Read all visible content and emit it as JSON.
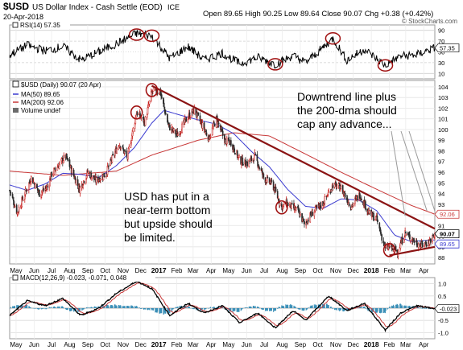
{
  "header": {
    "ticker": "$USD",
    "name": "US Dollar Index - Cash Settle (EOD)",
    "exchange": "ICE",
    "date": "20-Apr-2018",
    "ohlc": "Open 89.65  High 90.25  Low 89.64  Close 90.07  Chg +0.38 (+0.42%)",
    "brand": "© StockCharts.com"
  },
  "rsi_panel": {
    "label": "RSI(14) 57.35",
    "value_tag": "57.35",
    "ticks": [
      90,
      70,
      50,
      30,
      10
    ],
    "ylim": [
      0,
      100
    ]
  },
  "price_panel": {
    "legend_title": "$USD (Daily) 90.07 (20 Apr)",
    "legend_items": [
      {
        "label": "MA(50) 89.65",
        "color": "#3b3bd0"
      },
      {
        "label": "MA(200) 92.06",
        "color": "#c83737"
      },
      {
        "label": "Volume undef",
        "color": "#6b6b6b"
      }
    ],
    "value_tags": [
      {
        "text": "92.06",
        "value": 92.06,
        "color": "#c83737"
      },
      {
        "text": "90.07",
        "value": 90.07,
        "color": "#000000"
      },
      {
        "text": "89.65",
        "value": 89.65,
        "color": "#3b3bd0"
      }
    ],
    "ticks": [
      88,
      89,
      90,
      91,
      92,
      93,
      94,
      95,
      96,
      97,
      98,
      99,
      100,
      101,
      102,
      103,
      104
    ],
    "ylim": [
      87.4,
      104.6
    ]
  },
  "macd_panel": {
    "label": "MACD(12,26,9) -0.023, -0.071, 0.048",
    "label_colors": [
      "#000000",
      "#c83737",
      "#2f7fa8"
    ],
    "value_tag": "-0.023",
    "ticks": [
      1.0,
      0.5,
      0.0,
      -0.5,
      -1.0
    ],
    "ylim": [
      -1.25,
      1.25
    ]
  },
  "annotations": {
    "left_note": "USD has put in a\nnear-term bottom\nbut upside should\nbe limited.",
    "right_note": "Downtrend line plus\nthe 200-dma should\ncap any advance..."
  },
  "x_axis": {
    "labels": [
      "May",
      "Jun",
      "Jul",
      "Aug",
      "Sep",
      "Oct",
      "Nov",
      "Dec",
      "2017",
      "Feb",
      "Mar",
      "Apr",
      "May",
      "Jun",
      "Jul",
      "Aug",
      "Sep",
      "Oct",
      "Nov",
      "Dec",
      "2018",
      "Feb",
      "Mar",
      "Apr"
    ],
    "bold": [
      "2017",
      "2018"
    ]
  },
  "chart_data": {
    "type": "line",
    "x_range": [
      "2016-04-20",
      "2018-04-20"
    ],
    "colors": {
      "up": "#c8201e",
      "down": "#2b2b2b",
      "ma50": "#3b3bd0",
      "ma200": "#c83737",
      "trend": "#8b1414",
      "circle": "#a01010",
      "hist": "#3a8fb7"
    },
    "price_anchors": [
      [
        "2016-04-20",
        94.3
      ],
      [
        "2016-05-03",
        92.2
      ],
      [
        "2016-05-27",
        95.5
      ],
      [
        "2016-06-10",
        94.0
      ],
      [
        "2016-06-24",
        94.6
      ],
      [
        "2016-07-01",
        95.8
      ],
      [
        "2016-07-25",
        97.5
      ],
      [
        "2016-08-18",
        94.4
      ],
      [
        "2016-09-01",
        96.0
      ],
      [
        "2016-09-15",
        95.2
      ],
      [
        "2016-10-01",
        95.8
      ],
      [
        "2016-10-25",
        98.7
      ],
      [
        "2016-11-08",
        97.4
      ],
      [
        "2016-11-24",
        101.6
      ],
      [
        "2016-12-08",
        100.7
      ],
      [
        "2016-12-20",
        103.5
      ],
      [
        "2017-01-03",
        103.6
      ],
      [
        "2017-01-18",
        100.3
      ],
      [
        "2017-02-02",
        99.5
      ],
      [
        "2017-02-20",
        101.2
      ],
      [
        "2017-03-03",
        101.8
      ],
      [
        "2017-03-28",
        99.2
      ],
      [
        "2017-04-10",
        101.0
      ],
      [
        "2017-04-25",
        98.9
      ],
      [
        "2017-05-05",
        98.8
      ],
      [
        "2017-05-20",
        97.1
      ],
      [
        "2017-06-02",
        96.8
      ],
      [
        "2017-06-15",
        97.5
      ],
      [
        "2017-07-01",
        95.4
      ],
      [
        "2017-07-15",
        94.9
      ],
      [
        "2017-07-31",
        92.7
      ],
      [
        "2017-08-08",
        93.1
      ],
      [
        "2017-08-29",
        92.3
      ],
      [
        "2017-09-08",
        91.1
      ],
      [
        "2017-09-22",
        92.2
      ],
      [
        "2017-10-10",
        93.1
      ],
      [
        "2017-10-27",
        94.8
      ],
      [
        "2017-11-10",
        94.5
      ],
      [
        "2017-11-27",
        92.8
      ],
      [
        "2017-12-12",
        93.9
      ],
      [
        "2017-12-29",
        92.1
      ],
      [
        "2018-01-10",
        91.6
      ],
      [
        "2018-01-25",
        88.8
      ],
      [
        "2018-02-01",
        89.0
      ],
      [
        "2018-02-15",
        88.6
      ],
      [
        "2018-02-28",
        90.3
      ],
      [
        "2018-03-10",
        89.8
      ],
      [
        "2018-03-27",
        89.1
      ],
      [
        "2018-04-10",
        89.5
      ],
      [
        "2018-04-20",
        90.07
      ]
    ],
    "ma50_anchors": [
      [
        "2016-04-20",
        94.8
      ],
      [
        "2016-05-20",
        94.3
      ],
      [
        "2016-06-20",
        94.9
      ],
      [
        "2016-07-20",
        95.9
      ],
      [
        "2016-08-20",
        95.8
      ],
      [
        "2016-09-20",
        95.5
      ],
      [
        "2016-10-20",
        96.6
      ],
      [
        "2016-11-20",
        98.3
      ],
      [
        "2016-12-20",
        100.6
      ],
      [
        "2017-01-10",
        101.8
      ],
      [
        "2017-02-10",
        101.3
      ],
      [
        "2017-03-10",
        100.9
      ],
      [
        "2017-04-10",
        100.5
      ],
      [
        "2017-05-10",
        99.6
      ],
      [
        "2017-06-10",
        97.9
      ],
      [
        "2017-07-10",
        96.5
      ],
      [
        "2017-08-10",
        94.4
      ],
      [
        "2017-09-10",
        92.8
      ],
      [
        "2017-10-10",
        92.6
      ],
      [
        "2017-11-10",
        93.5
      ],
      [
        "2017-12-10",
        93.4
      ],
      [
        "2018-01-10",
        92.4
      ],
      [
        "2018-02-10",
        90.1
      ],
      [
        "2018-03-10",
        89.5
      ],
      [
        "2018-04-20",
        89.65
      ]
    ],
    "ma200_anchors": [
      [
        "2016-04-20",
        96.1
      ],
      [
        "2016-07-20",
        95.7
      ],
      [
        "2016-10-20",
        96.1
      ],
      [
        "2016-12-20",
        97.6
      ],
      [
        "2017-03-10",
        99.0
      ],
      [
        "2017-05-10",
        99.7
      ],
      [
        "2017-07-10",
        99.4
      ],
      [
        "2017-09-10",
        97.7
      ],
      [
        "2017-11-10",
        96.0
      ],
      [
        "2018-01-10",
        94.4
      ],
      [
        "2018-03-10",
        92.9
      ],
      [
        "2018-04-20",
        92.06
      ]
    ],
    "rsi_anchors": [
      [
        "2016-04-20",
        45
      ],
      [
        "2016-05-20",
        62
      ],
      [
        "2016-06-20",
        52
      ],
      [
        "2016-07-20",
        60
      ],
      [
        "2016-08-20",
        35
      ],
      [
        "2016-09-20",
        50
      ],
      [
        "2016-10-20",
        65
      ],
      [
        "2016-11-24",
        84
      ],
      [
        "2016-12-20",
        80
      ],
      [
        "2017-01-20",
        38
      ],
      [
        "2017-02-20",
        60
      ],
      [
        "2017-03-20",
        35
      ],
      [
        "2017-04-20",
        48
      ],
      [
        "2017-05-20",
        28
      ],
      [
        "2017-06-20",
        40
      ],
      [
        "2017-07-20",
        27
      ],
      [
        "2017-08-20",
        43
      ],
      [
        "2017-09-10",
        30
      ],
      [
        "2017-10-10",
        58
      ],
      [
        "2017-10-27",
        75
      ],
      [
        "2017-11-20",
        35
      ],
      [
        "2017-12-20",
        55
      ],
      [
        "2018-01-25",
        25
      ],
      [
        "2018-02-20",
        42
      ],
      [
        "2018-03-20",
        45
      ],
      [
        "2018-04-20",
        57.35
      ]
    ],
    "macd_anchors": [
      [
        "2016-04-20",
        -0.3
      ],
      [
        "2016-05-20",
        0.3
      ],
      [
        "2016-06-20",
        0.1
      ],
      [
        "2016-07-20",
        0.4
      ],
      [
        "2016-08-20",
        -0.3
      ],
      [
        "2016-09-20",
        0.0
      ],
      [
        "2016-10-20",
        0.6
      ],
      [
        "2016-11-24",
        1.1
      ],
      [
        "2016-12-20",
        0.8
      ],
      [
        "2017-01-20",
        -0.3
      ],
      [
        "2017-02-20",
        0.2
      ],
      [
        "2017-03-20",
        -0.2
      ],
      [
        "2017-04-20",
        0.1
      ],
      [
        "2017-05-20",
        -0.6
      ],
      [
        "2017-06-20",
        -0.2
      ],
      [
        "2017-07-20",
        -0.8
      ],
      [
        "2017-08-20",
        -0.1
      ],
      [
        "2017-09-10",
        -0.5
      ],
      [
        "2017-10-20",
        0.5
      ],
      [
        "2017-11-20",
        -0.1
      ],
      [
        "2017-12-20",
        0.2
      ],
      [
        "2018-01-25",
        -0.9
      ],
      [
        "2018-02-20",
        -0.2
      ],
      [
        "2018-03-20",
        0.1
      ],
      [
        "2018-04-20",
        -0.023
      ]
    ],
    "downtrend_line": [
      [
        "2016-12-20",
        104.1
      ],
      [
        "2018-04-20",
        90.7
      ]
    ],
    "support_line": [
      [
        "2018-02-01",
        88.2
      ],
      [
        "2018-04-20",
        89.0
      ]
    ],
    "rsi_circles": [
      [
        "2016-11-24",
        82
      ],
      [
        "2016-12-20",
        80
      ],
      [
        "2017-07-20",
        27
      ],
      [
        "2017-10-27",
        75
      ],
      [
        "2018-01-25",
        25
      ]
    ],
    "price_circles": [
      [
        "2016-11-24",
        101.6
      ],
      [
        "2016-12-20",
        103.7
      ],
      [
        "2017-07-31",
        92.7
      ],
      [
        "2018-02-01",
        88.7
      ]
    ]
  }
}
